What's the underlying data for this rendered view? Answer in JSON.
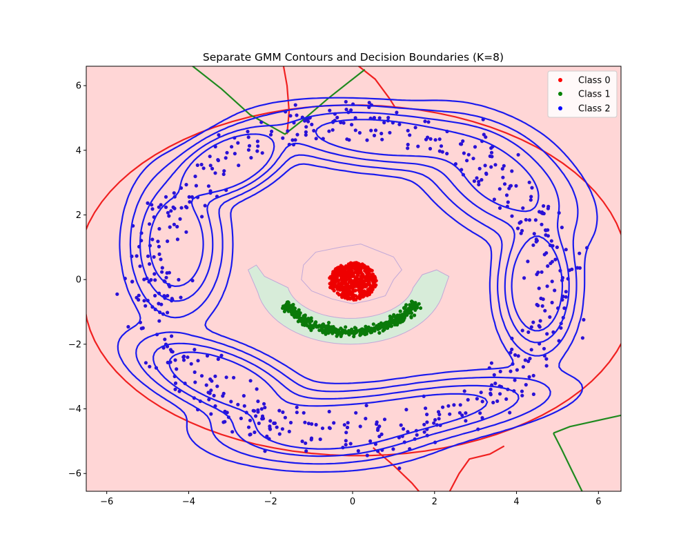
{
  "chart_data": {
    "type": "scatter",
    "title": "Separate GMM Contours and Decision Boundaries (K=8)",
    "xlabel": "",
    "ylabel": "",
    "xlim": [
      -6.5,
      6.55
    ],
    "ylim": [
      -6.55,
      6.6
    ],
    "x_ticks": [
      -6,
      -4,
      -2,
      0,
      2,
      4,
      6
    ],
    "y_ticks": [
      -6,
      -4,
      -2,
      0,
      2,
      4,
      6
    ],
    "x_tick_labels": [
      "−6",
      "−4",
      "−2",
      "0",
      "2",
      "4",
      "6"
    ],
    "y_tick_labels": [
      "−6",
      "−4",
      "−2",
      "0",
      "2",
      "4",
      "6"
    ],
    "grid": false,
    "legend_position": "top-right",
    "series": [
      {
        "name": "Class 0",
        "color": "#ff0000",
        "shape": "disk",
        "center": [
          0,
          -0.05
        ],
        "radius": 0.58
      },
      {
        "name": "Class 1",
        "color": "#008000",
        "shape": "arc",
        "center": [
          -0.05,
          -0.05
        ],
        "radius": 1.6
      },
      {
        "name": "Class 2",
        "color": "#0000ff",
        "shape": "ring",
        "center": [
          0,
          0
        ],
        "radius": 4.9
      }
    ],
    "gmm_components": [
      {
        "mx": -4.3,
        "my": 1.1,
        "sx": 0.5,
        "sy": 1.0,
        "rho": 0.0,
        "w": 1
      },
      {
        "mx": -3.0,
        "my": 3.6,
        "sx": 0.6,
        "sy": 0.5,
        "rho": 0.5,
        "w": 1
      },
      {
        "mx": 0.7,
        "my": 4.4,
        "sx": 1.3,
        "sy": 0.45,
        "rho": -0.3,
        "w": 1
      },
      {
        "mx": 4.5,
        "my": -0.2,
        "sx": 0.4,
        "sy": 0.9,
        "rho": 0.0,
        "w": 1
      },
      {
        "mx": -3.2,
        "my": -3.1,
        "sx": 0.9,
        "sy": 0.6,
        "rho": -0.6,
        "w": 1
      },
      {
        "mx": 1.6,
        "my": -4.1,
        "sx": 1.5,
        "sy": 0.5,
        "rho": 0.55,
        "w": 1
      },
      {
        "mx": 3.6,
        "my": 3.1,
        "sx": 0.9,
        "sy": 0.9,
        "rho": -0.5,
        "w": 1
      },
      {
        "mx": -0.8,
        "my": -4.6,
        "sx": 1.2,
        "sy": 0.5,
        "rho": 0.0,
        "w": 1
      }
    ],
    "gmm_contour_color": "#1a1aee",
    "region_colors": {
      "class_0": "#ffd6d6",
      "class_1": "#d7ecd9",
      "class_2": "#e2dbf5"
    },
    "boundary_colors": {
      "red": "#f02020",
      "green": "#1e8a1e",
      "region_edge": "#c0a8d8"
    }
  }
}
